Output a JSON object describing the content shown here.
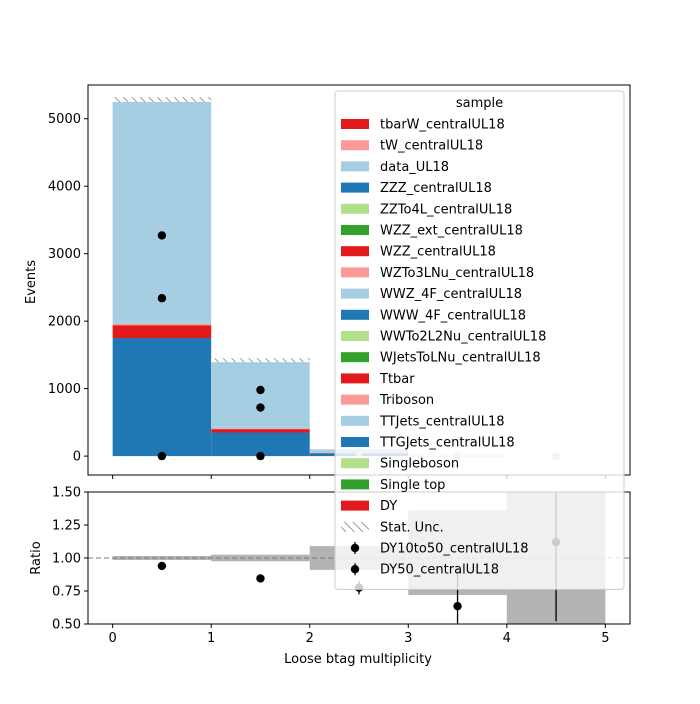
{
  "chart_data": [
    {
      "type": "bar",
      "stacked": true,
      "xlabel": "",
      "ylabel": "Events",
      "xlim": [
        -0.25,
        5.25
      ],
      "ylim": [
        -280,
        5500
      ],
      "bin_edges": [
        0,
        1,
        2,
        3,
        4,
        5
      ],
      "yticks": [
        0,
        1000,
        2000,
        3000,
        4000,
        5000
      ],
      "xticks": [
        0,
        1,
        2,
        3,
        4,
        5
      ],
      "series": [
        {
          "name": "TTGJets_centralUL18",
          "color": "#1f78b4",
          "values": [
            1750,
            350,
            40,
            2,
            0
          ]
        },
        {
          "name": "Ttbar",
          "color": "#e31a1c",
          "values": [
            190,
            50,
            8,
            1,
            0
          ]
        },
        {
          "name": "Triboson",
          "color": "#fb9a99",
          "values": [
            20,
            8,
            2,
            0,
            0
          ]
        },
        {
          "name": "data_UL18",
          "color": "#a6cee3",
          "values": [
            40,
            25,
            5,
            1,
            0
          ]
        },
        {
          "name": "TTJets_centralUL18",
          "color": "#a6cee3",
          "values": [
            3250,
            960,
            45,
            4,
            0
          ]
        }
      ],
      "stat_unc_totals": [
        5320,
        1450,
        100,
        8,
        0
      ],
      "data_points": [
        {
          "name": "DY10to50_centralUL18",
          "x": [
            0.5,
            1.5
          ],
          "y": [
            3270,
            980
          ]
        },
        {
          "name": "DY50_centralUL18",
          "x": [
            0.5,
            1.5
          ],
          "y": [
            2340,
            720
          ]
        },
        {
          "name": "DY",
          "x": [
            0.5,
            1.5
          ],
          "y": [
            0,
            0
          ]
        },
        {
          "name": "faded",
          "x": [
            2.5,
            3.5,
            4.5
          ],
          "y": [
            60,
            5,
            0
          ]
        }
      ]
    },
    {
      "type": "scatter",
      "xlabel": "Loose btag multiplicity",
      "ylabel": "Ratio",
      "xlim": [
        -0.25,
        5.25
      ],
      "ylim": [
        0.5,
        1.5
      ],
      "yticks": [
        0.5,
        0.75,
        1.0,
        1.25,
        1.5
      ],
      "ytick_labels": [
        "0.50",
        "0.75",
        "1.00",
        "1.25",
        "1.50"
      ],
      "xticks": [
        0,
        1,
        2,
        3,
        4,
        5
      ],
      "reference_line": 1.0,
      "unc_bands": [
        {
          "x0": 0,
          "x1": 1,
          "lo": 0.985,
          "hi": 1.015
        },
        {
          "x0": 1,
          "x1": 2,
          "lo": 0.975,
          "hi": 1.025
        },
        {
          "x0": 2,
          "x1": 3,
          "lo": 0.91,
          "hi": 1.09
        },
        {
          "x0": 3,
          "x1": 4,
          "lo": 0.72,
          "hi": 1.36
        },
        {
          "x0": 4,
          "x1": 5,
          "lo": 0.5,
          "hi": 1.5
        }
      ],
      "points": [
        {
          "x": 0.5,
          "y": 0.94,
          "err": 0
        },
        {
          "x": 1.5,
          "y": 0.845,
          "err": 0
        },
        {
          "x": 2.5,
          "y": 0.775,
          "err": 0.05
        },
        {
          "x": 3.5,
          "y": 0.635,
          "err": 0.28
        },
        {
          "x": 4.5,
          "y": 1.12,
          "err": 0.6
        }
      ]
    }
  ],
  "legend": {
    "title": "sample",
    "entries": [
      {
        "label": "tbarW_centralUL18",
        "kind": "patch",
        "color": "#e31a1c"
      },
      {
        "label": "tW_centralUL18",
        "kind": "patch",
        "color": "#fb9a99"
      },
      {
        "label": "data_UL18",
        "kind": "patch",
        "color": "#a6cee3"
      },
      {
        "label": "ZZZ_centralUL18",
        "kind": "patch",
        "color": "#1f78b4"
      },
      {
        "label": "ZZTo4L_centralUL18",
        "kind": "patch",
        "color": "#b2df8a"
      },
      {
        "label": "WZZ_ext_centralUL18",
        "kind": "patch",
        "color": "#33a02c"
      },
      {
        "label": "WZZ_centralUL18",
        "kind": "patch",
        "color": "#e31a1c"
      },
      {
        "label": "WZTo3LNu_centralUL18",
        "kind": "patch",
        "color": "#fb9a99"
      },
      {
        "label": "WWZ_4F_centralUL18",
        "kind": "patch",
        "color": "#a6cee3"
      },
      {
        "label": "WWW_4F_centralUL18",
        "kind": "patch",
        "color": "#1f78b4"
      },
      {
        "label": "WWTo2L2Nu_centralUL18",
        "kind": "patch",
        "color": "#b2df8a"
      },
      {
        "label": "WJetsToLNu_centralUL18",
        "kind": "patch",
        "color": "#33a02c"
      },
      {
        "label": "Ttbar",
        "kind": "patch",
        "color": "#e31a1c"
      },
      {
        "label": "Triboson",
        "kind": "patch",
        "color": "#fb9a99"
      },
      {
        "label": "TTJets_centralUL18",
        "kind": "patch",
        "color": "#a6cee3"
      },
      {
        "label": "TTGJets_centralUL18",
        "kind": "patch",
        "color": "#1f78b4"
      },
      {
        "label": "Singleboson",
        "kind": "patch",
        "color": "#b2df8a"
      },
      {
        "label": "Single top",
        "kind": "patch",
        "color": "#33a02c"
      },
      {
        "label": "DY",
        "kind": "patch",
        "color": "#e31a1c"
      },
      {
        "label": "Stat. Unc.",
        "kind": "hatch",
        "color": "#999999"
      },
      {
        "label": "DY10to50_centralUL18",
        "kind": "marker",
        "color": "#000000"
      },
      {
        "label": "DY50_centralUL18",
        "kind": "marker",
        "color": "#000000"
      }
    ]
  }
}
